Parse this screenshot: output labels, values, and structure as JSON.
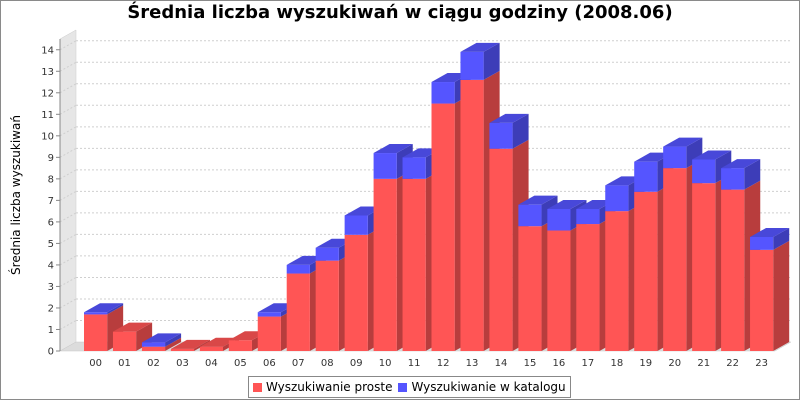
{
  "chart_data": {
    "type": "bar",
    "stacked": true,
    "three_d": true,
    "title": "Średnia liczba wyszukiwań w ciągu godziny (2008.06)",
    "ylabel": "Średnia liczba wyszukiwań",
    "xlabel": "",
    "ylim": [
      0,
      14.5
    ],
    "yticks": [
      0,
      1,
      2,
      3,
      4,
      5,
      6,
      7,
      8,
      9,
      10,
      11,
      12,
      13,
      14
    ],
    "grid": true,
    "legend_position": "bottom",
    "categories": [
      "00",
      "01",
      "02",
      "03",
      "04",
      "05",
      "06",
      "07",
      "08",
      "09",
      "10",
      "11",
      "12",
      "13",
      "14",
      "15",
      "16",
      "17",
      "18",
      "19",
      "20",
      "21",
      "22",
      "23"
    ],
    "series": [
      {
        "name": "Wyszukiwanie proste",
        "color": "#ff5555",
        "values": [
          1.7,
          0.9,
          0.2,
          0.1,
          0.2,
          0.5,
          1.6,
          3.6,
          4.2,
          5.4,
          8.0,
          8.0,
          11.5,
          12.6,
          9.4,
          5.8,
          5.6,
          5.9,
          6.5,
          7.4,
          8.5,
          7.8,
          7.5,
          4.7
        ]
      },
      {
        "name": "Wyszukiwanie w katalogu",
        "color": "#5555ff",
        "values": [
          0.1,
          0.0,
          0.2,
          0.0,
          0.0,
          0.0,
          0.2,
          0.4,
          0.6,
          0.9,
          1.2,
          1.0,
          1.0,
          1.3,
          1.2,
          1.0,
          1.0,
          0.7,
          1.2,
          1.4,
          1.0,
          1.1,
          1.0,
          0.6
        ]
      }
    ]
  }
}
